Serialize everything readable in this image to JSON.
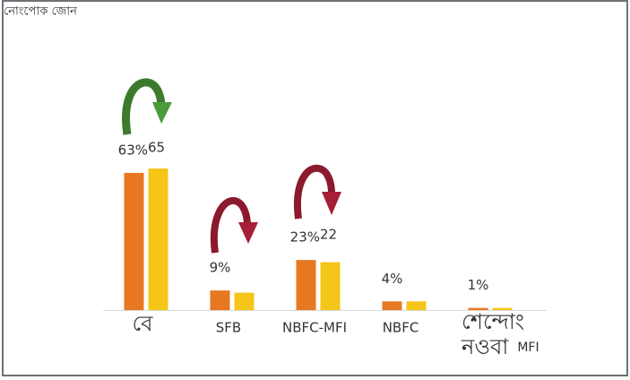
{
  "chart_data": {
    "type": "bar",
    "title": "নোংপোক জোন",
    "categories": [
      "বে",
      "SFB",
      "NBFC-MFI",
      "NBFC",
      "শেন্দোং নওবা MFI"
    ],
    "series": [
      {
        "color": "#e87722",
        "values": [
          63,
          9,
          23,
          4,
          1
        ],
        "value_labels": [
          "63%",
          "9%",
          "23%",
          "4%",
          "1%"
        ]
      },
      {
        "color": "#f5c518",
        "values": [
          65,
          8,
          22,
          4,
          1
        ],
        "value_labels": [
          "65",
          null,
          "22",
          null,
          null
        ]
      }
    ],
    "ylim": [
      0,
      100
    ]
  }
}
